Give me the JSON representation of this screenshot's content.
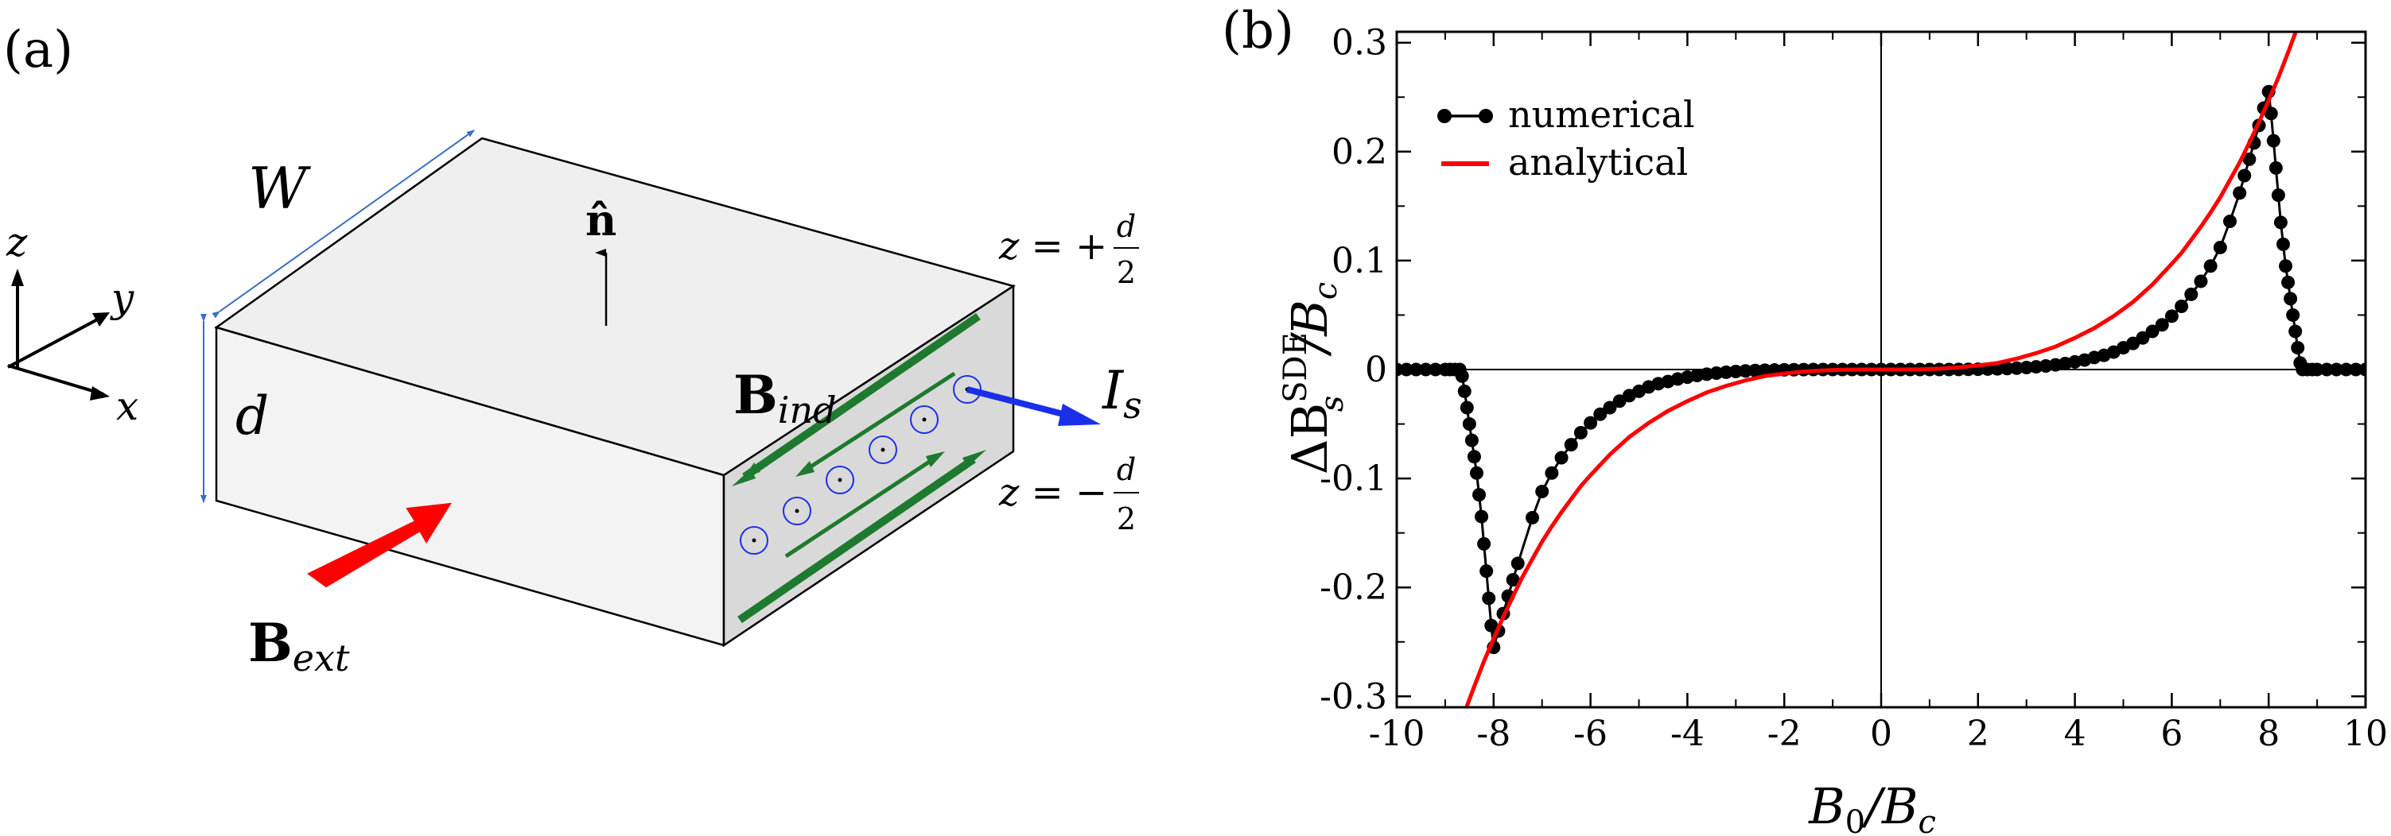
{
  "panel_a": {
    "label": "(a)",
    "axes": {
      "z": "z",
      "y": "y",
      "x": "x"
    },
    "width_label": "W",
    "thickness_label": "d",
    "normal_label": "n̂",
    "field_ind_main": "B",
    "field_ind_sub": "ind",
    "field_ext_main": "B",
    "field_ext_sub": "ext",
    "current_main": "I",
    "current_sub": "s",
    "top_surface_lhs": "z = +",
    "bottom_surface_lhs": "z = −",
    "frac_num": "d",
    "frac_den": "2",
    "colors": {
      "slab_top": "#efefef",
      "slab_front": "#f1f1f1",
      "slab_side": "#d9d9d9",
      "dimension": "#3a6fc4",
      "induced": "#1e7a2e",
      "external": "#ff0000",
      "current": "#1a2fe8",
      "vortex": "#1a2fe8"
    }
  },
  "panel_b": {
    "label": "(b)",
    "ylabel_main": "ΔB",
    "ylabel_sup": "SDE",
    "ylabel_sub": "s",
    "ylabel_den": "/B",
    "ylabel_den_sub": "c",
    "xlabel_main": "B",
    "xlabel_sub": "0",
    "xlabel_den": "/B",
    "xlabel_den_sub": "c",
    "legend": {
      "position": "top-left",
      "numerical": "numerical",
      "analytical": "analytical"
    },
    "colors": {
      "numerical": "#000000",
      "analytical": "#ff0000"
    }
  },
  "chart_data": {
    "type": "line",
    "xlim": [
      -10,
      10
    ],
    "ylim": [
      -0.31,
      0.31
    ],
    "xticks": [
      "-10",
      "-8",
      "-6",
      "-4",
      "-2",
      "0",
      "2",
      "4",
      "6",
      "8",
      "10"
    ],
    "yticks": [
      "-0.3",
      "-0.2",
      "-0.1",
      "0",
      "0.1",
      "0.2",
      "0.3"
    ],
    "zero_lines": true,
    "series": [
      {
        "name": "numerical",
        "style": "line+markers",
        "x": [
          -10,
          -9.8,
          -9.6,
          -9.4,
          -9.2,
          -9,
          -8.9,
          -8.8,
          -8.7,
          -8.65,
          -8.6,
          -8.55,
          -8.5,
          -8.45,
          -8.4,
          -8.35,
          -8.3,
          -8.25,
          -8.2,
          -8.15,
          -8.1,
          -8.05,
          -8.0,
          -7.9,
          -7.8,
          -7.7,
          -7.6,
          -7.5,
          -7.2,
          -7.0,
          -6.8,
          -6.6,
          -6.4,
          -6.2,
          -6.0,
          -5.8,
          -5.6,
          -5.4,
          -5.2,
          -5.0,
          -4.8,
          -4.6,
          -4.4,
          -4.2,
          -4.0,
          -3.8,
          -3.6,
          -3.4,
          -3.2,
          -3.0,
          -2.8,
          -2.6,
          -2.4,
          -2.2,
          -2.0,
          -1.8,
          -1.6,
          -1.4,
          -1.2,
          -1.0,
          -0.8,
          -0.6,
          -0.4,
          -0.2,
          0.0,
          0.2,
          0.4,
          0.6,
          0.8,
          1.0,
          1.2,
          1.4,
          1.6,
          1.8,
          2.0,
          2.2,
          2.4,
          2.6,
          2.8,
          3.0,
          3.2,
          3.4,
          3.6,
          3.8,
          4.0,
          4.2,
          4.4,
          4.6,
          4.8,
          5.0,
          5.2,
          5.4,
          5.6,
          5.8,
          6.0,
          6.2,
          6.4,
          6.6,
          6.8,
          7.0,
          7.2,
          7.4,
          7.5,
          7.6,
          7.7,
          7.8,
          7.9,
          8.0,
          8.05,
          8.1,
          8.15,
          8.2,
          8.25,
          8.3,
          8.35,
          8.4,
          8.45,
          8.5,
          8.55,
          8.6,
          8.65,
          8.7,
          8.8,
          8.9,
          9.0,
          9.2,
          9.4,
          9.6,
          9.8,
          10.0
        ],
        "y": [
          0.0,
          0.0,
          0.0,
          0.0,
          0.0,
          0.0,
          0.0,
          0.0,
          0.0,
          -0.006,
          -0.02,
          -0.035,
          -0.05,
          -0.065,
          -0.08,
          -0.095,
          -0.115,
          -0.135,
          -0.16,
          -0.185,
          -0.21,
          -0.235,
          -0.255,
          -0.24,
          -0.224,
          -0.208,
          -0.193,
          -0.178,
          -0.136,
          -0.112,
          -0.095,
          -0.081,
          -0.069,
          -0.058,
          -0.049,
          -0.041,
          -0.035,
          -0.029,
          -0.024,
          -0.02,
          -0.016,
          -0.013,
          -0.011,
          -0.0087,
          -0.007,
          -0.0055,
          -0.0043,
          -0.0033,
          -0.0025,
          -0.0018,
          -0.0013,
          -0.0009,
          -0.0006,
          -0.0004,
          -0.0003,
          -0.0002,
          -0.0001,
          0.0,
          0.0,
          0.0,
          0.0,
          0.0,
          0.0,
          0.0,
          0.0,
          0.0,
          0.0,
          0.0,
          0.0,
          0.0,
          0.0,
          0.0,
          0.0001,
          0.0002,
          0.0003,
          0.0004,
          0.0006,
          0.0009,
          0.0013,
          0.0018,
          0.0025,
          0.0033,
          0.0043,
          0.0055,
          0.007,
          0.0087,
          0.011,
          0.013,
          0.016,
          0.02,
          0.024,
          0.029,
          0.035,
          0.041,
          0.049,
          0.058,
          0.069,
          0.081,
          0.095,
          0.112,
          0.136,
          0.162,
          0.178,
          0.193,
          0.208,
          0.224,
          0.24,
          0.255,
          0.235,
          0.21,
          0.185,
          0.16,
          0.135,
          0.115,
          0.095,
          0.08,
          0.065,
          0.05,
          0.035,
          0.02,
          0.006,
          0.0,
          0.0,
          0.0,
          0.0,
          0.0,
          0.0,
          0.0,
          0.0,
          0.0
        ]
      },
      {
        "name": "analytical",
        "style": "line",
        "x": [
          -8.56,
          -8.4,
          -8.2,
          -8.0,
          -7.8,
          -7.6,
          -7.4,
          -7.2,
          -7.0,
          -6.8,
          -6.6,
          -6.4,
          -6.2,
          -6.0,
          -5.6,
          -5.2,
          -4.8,
          -4.4,
          -4.0,
          -3.6,
          -3.2,
          -2.8,
          -2.4,
          -2.0,
          -1.6,
          -1.2,
          -0.8,
          -0.4,
          0.0,
          0.4,
          0.8,
          1.2,
          1.6,
          2.0,
          2.4,
          2.8,
          3.2,
          3.6,
          4.0,
          4.4,
          4.8,
          5.2,
          5.6,
          6.0,
          6.2,
          6.4,
          6.6,
          6.8,
          7.0,
          7.2,
          7.4,
          7.6,
          7.8,
          8.0,
          8.2,
          8.4,
          8.56
        ],
        "y": [
          -0.31,
          -0.291,
          -0.268,
          -0.247,
          -0.227,
          -0.208,
          -0.19,
          -0.174,
          -0.158,
          -0.144,
          -0.131,
          -0.119,
          -0.107,
          -0.097,
          -0.078,
          -0.062,
          -0.049,
          -0.038,
          -0.029,
          -0.021,
          -0.015,
          -0.01,
          -0.006,
          -0.0037,
          -0.0019,
          -0.0008,
          -0.0002,
          0.0,
          0.0,
          0.0,
          0.0002,
          0.0008,
          0.0019,
          0.0037,
          0.006,
          0.01,
          0.015,
          0.021,
          0.029,
          0.038,
          0.049,
          0.062,
          0.078,
          0.097,
          0.107,
          0.119,
          0.131,
          0.144,
          0.158,
          0.174,
          0.19,
          0.208,
          0.227,
          0.247,
          0.268,
          0.291,
          0.31
        ]
      }
    ]
  }
}
